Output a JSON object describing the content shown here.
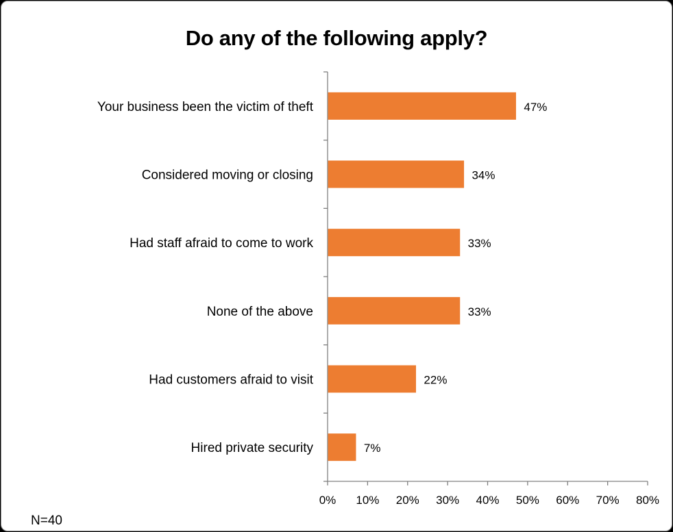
{
  "chart_data": {
    "type": "bar",
    "orientation": "horizontal",
    "title": "Do any of the following apply?",
    "categories": [
      "Your business been the victim of theft",
      "Considered moving or closing",
      "Had staff afraid to come to work",
      "None of the above",
      "Had customers afraid to visit",
      "Hired private security"
    ],
    "values": [
      47,
      34,
      33,
      33,
      22,
      7
    ],
    "data_labels": [
      "47%",
      "34%",
      "33%",
      "33%",
      "22%",
      "7%"
    ],
    "x_ticks": [
      "0%",
      "10%",
      "20%",
      "30%",
      "40%",
      "50%",
      "60%",
      "70%",
      "80%"
    ],
    "xlim": [
      0,
      80
    ],
    "xlabel": "",
    "ylabel": "",
    "grid": false,
    "legend": "none",
    "bar_color": "#ED7D31",
    "note": "N=40"
  }
}
